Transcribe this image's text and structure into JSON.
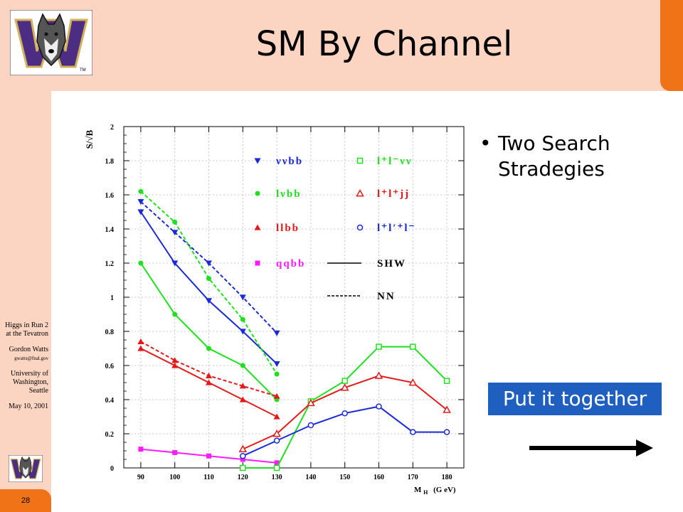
{
  "slide": {
    "title": "SM By Channel",
    "page_number": "28",
    "logo_letter": "W",
    "logo_mark": "TM",
    "sidebar": {
      "line1": "Higgs in Run 2",
      "line2": "at the Tevatron",
      "author": "Gordon Watts",
      "email": "gwatts@fnal.gov",
      "inst1": "University of",
      "inst2": "Washington,",
      "inst3": "Seattle",
      "date": "May 10, 2001"
    },
    "bullet": "Two Search Stradegies",
    "callout": "Put it together"
  },
  "colors": {
    "band": "#fcd5c2",
    "orange": "#f07318",
    "callout": "#1f5fbf",
    "blue": "#1a2ad6",
    "green": "#1fe01f",
    "red": "#e41a1a",
    "magenta": "#ff1aff",
    "logo_purple": "#4b2e83",
    "logo_gold": "#d4b05a"
  },
  "chart_data": {
    "type": "line",
    "ylabel": "S/√B",
    "xlabel_main": "M",
    "xlabel_sub": "H",
    "xlabel_unit": "(G eV)",
    "xlim": [
      85,
      185
    ],
    "ylim": [
      0,
      2
    ],
    "xticks": [
      90,
      100,
      110,
      120,
      130,
      140,
      150,
      160,
      170,
      180
    ],
    "yticks": [
      0,
      0.2,
      0.4,
      0.6,
      0.8,
      1,
      1.2,
      1.4,
      1.6,
      1.8,
      2
    ],
    "ytick_labels": [
      "0",
      "0.2",
      "0.4",
      "0.6",
      "0.8",
      "1",
      "1.2",
      "1.4",
      "1.6",
      "1.8",
      "2"
    ],
    "legend": [
      {
        "label": "ννbb",
        "color": "#1a2ad6",
        "marker": "triangle-down-filled"
      },
      {
        "label": "lνbb",
        "color": "#1fe01f",
        "marker": "circle-filled"
      },
      {
        "label": "llbb",
        "color": "#e41a1a",
        "marker": "triangle-up-filled"
      },
      {
        "label": "qqbb",
        "color": "#ff1aff",
        "marker": "square-filled"
      },
      {
        "label": "l⁺l⁻νν",
        "color": "#1fe01f",
        "marker": "square-open"
      },
      {
        "label": "l⁺l⁺jj",
        "color": "#e41a1a",
        "marker": "triangle-up-open"
      },
      {
        "label": "l⁺l′⁺l⁻",
        "color": "#1a2ad6",
        "marker": "circle-open"
      },
      {
        "label": "SHW",
        "color": "#000000",
        "marker": "line-solid"
      },
      {
        "label": "NN",
        "color": "#000000",
        "marker": "line-dashed"
      }
    ],
    "series": [
      {
        "color": "#1a2ad6",
        "dash": false,
        "marker": "triangle-down-filled",
        "x": [
          90,
          100,
          110,
          120,
          130
        ],
        "y": [
          1.5,
          1.2,
          0.98,
          0.8,
          0.61
        ]
      },
      {
        "color": "#1a2ad6",
        "dash": true,
        "marker": "triangle-down-filled",
        "x": [
          90,
          100,
          110,
          120,
          130
        ],
        "y": [
          1.56,
          1.38,
          1.2,
          1.0,
          0.79
        ]
      },
      {
        "color": "#1fe01f",
        "dash": false,
        "marker": "circle-filled",
        "x": [
          90,
          100,
          110,
          120,
          130
        ],
        "y": [
          1.2,
          0.9,
          0.7,
          0.6,
          0.4
        ]
      },
      {
        "color": "#1fe01f",
        "dash": true,
        "marker": "circle-filled",
        "x": [
          90,
          100,
          110,
          120,
          130
        ],
        "y": [
          1.62,
          1.44,
          1.11,
          0.87,
          0.55
        ]
      },
      {
        "color": "#e41a1a",
        "dash": false,
        "marker": "triangle-up-filled",
        "x": [
          90,
          100,
          110,
          120,
          130
        ],
        "y": [
          0.7,
          0.6,
          0.5,
          0.4,
          0.3
        ]
      },
      {
        "color": "#e41a1a",
        "dash": true,
        "marker": "triangle-up-filled",
        "x": [
          90,
          100,
          110,
          120,
          130
        ],
        "y": [
          0.74,
          0.63,
          0.54,
          0.48,
          0.42
        ]
      },
      {
        "color": "#ff1aff",
        "dash": false,
        "marker": "square-filled",
        "x": [
          90,
          100,
          110,
          120,
          130
        ],
        "y": [
          0.11,
          0.09,
          0.07,
          0.05,
          0.03
        ]
      },
      {
        "color": "#1fe01f",
        "dash": false,
        "marker": "square-open",
        "x": [
          120,
          130,
          140,
          150,
          160,
          170,
          180
        ],
        "y": [
          0.0,
          0.0,
          0.39,
          0.51,
          0.71,
          0.71,
          0.51
        ]
      },
      {
        "color": "#e41a1a",
        "dash": false,
        "marker": "triangle-up-open",
        "x": [
          120,
          130,
          140,
          150,
          160,
          170,
          180
        ],
        "y": [
          0.11,
          0.2,
          0.38,
          0.47,
          0.54,
          0.5,
          0.34
        ]
      },
      {
        "color": "#1a2ad6",
        "dash": false,
        "marker": "circle-open",
        "x": [
          120,
          130,
          140,
          150,
          160,
          170,
          180
        ],
        "y": [
          0.07,
          0.16,
          0.25,
          0.32,
          0.36,
          0.21,
          0.21
        ]
      }
    ]
  }
}
